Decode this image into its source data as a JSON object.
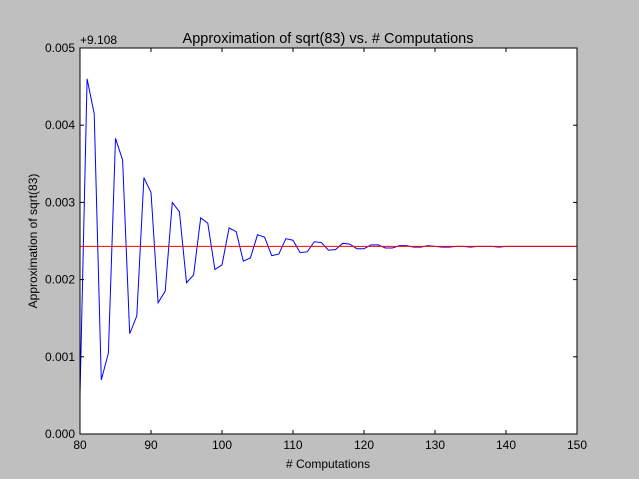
{
  "chart_data": {
    "type": "line",
    "title": "Approximation of sqrt(83) vs. # Computations",
    "xlabel": "# Computations",
    "ylabel": "Approximation of sqrt(83)",
    "y_offset_label": "+9.108",
    "xlim": [
      80,
      150
    ],
    "ylim": [
      0.0,
      0.005
    ],
    "x_ticks": [
      80,
      90,
      100,
      110,
      120,
      130,
      140,
      150
    ],
    "x_tick_labels": [
      "80",
      "90",
      "100",
      "110",
      "120",
      "130",
      "140",
      "150"
    ],
    "y_ticks": [
      0.0,
      0.001,
      0.002,
      0.003,
      0.004,
      0.005
    ],
    "y_tick_labels": [
      "0.000",
      "0.001",
      "0.002",
      "0.003",
      "0.004",
      "0.005"
    ],
    "grid": false,
    "series": [
      {
        "color": "#0000ff",
        "x": [
          80,
          81,
          82,
          83,
          84,
          85,
          86,
          87,
          88,
          89,
          90,
          91,
          92,
          93,
          94,
          95,
          96,
          97,
          98,
          99,
          100,
          101,
          102,
          103,
          104,
          105,
          106,
          107,
          108,
          109,
          110,
          111,
          112,
          113,
          114,
          115,
          116,
          117,
          118,
          119,
          120,
          121,
          122,
          123,
          124,
          125,
          126,
          127,
          128,
          129,
          130,
          131,
          132,
          133,
          134,
          135,
          136,
          137,
          138,
          139,
          140,
          141,
          142,
          143,
          144,
          145,
          146,
          147,
          148,
          149,
          150
        ],
        "y": [
          0.0005,
          0.0046,
          0.00415,
          0.0007,
          0.00105,
          0.00383,
          0.00355,
          0.0013,
          0.00153,
          0.00332,
          0.00313,
          0.0017,
          0.00185,
          0.003,
          0.00288,
          0.00196,
          0.00206,
          0.0028,
          0.00273,
          0.00213,
          0.00219,
          0.00267,
          0.00262,
          0.00224,
          0.00228,
          0.00258,
          0.00255,
          0.00231,
          0.00233,
          0.00253,
          0.00251,
          0.00235,
          0.00236,
          0.00249,
          0.00248,
          0.00238,
          0.00239,
          0.00247,
          0.00246,
          0.0024,
          0.0024,
          0.00245,
          0.00245,
          0.00241,
          0.00241,
          0.00244,
          0.00244,
          0.00242,
          0.00242,
          0.00244,
          0.00243,
          0.00242,
          0.00242,
          0.00243,
          0.00243,
          0.00242,
          0.00243,
          0.00243,
          0.00243,
          0.00242,
          0.00243,
          0.00243,
          0.00243,
          0.00243,
          0.00243,
          0.00243,
          0.00243,
          0.00243,
          0.00243,
          0.00243,
          0.00243
        ]
      },
      {
        "color": "#ff0000",
        "x": [
          80,
          150
        ],
        "y": [
          0.00243,
          0.00243
        ]
      }
    ]
  }
}
